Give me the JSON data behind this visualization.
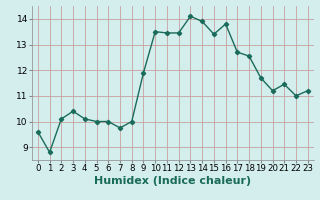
{
  "x": [
    0,
    1,
    2,
    3,
    4,
    5,
    6,
    7,
    8,
    9,
    10,
    11,
    12,
    13,
    14,
    15,
    16,
    17,
    18,
    19,
    20,
    21,
    22,
    23
  ],
  "y": [
    9.6,
    8.8,
    10.1,
    10.4,
    10.1,
    10.0,
    10.0,
    9.75,
    10.0,
    11.9,
    13.5,
    13.45,
    13.45,
    14.1,
    13.9,
    13.4,
    13.8,
    12.7,
    12.55,
    11.7,
    11.2,
    11.45,
    11.0,
    11.2
  ],
  "xlabel": "Humidex (Indice chaleur)",
  "xlim": [
    -0.5,
    23.5
  ],
  "ylim": [
    8.5,
    14.5
  ],
  "yticks": [
    9,
    10,
    11,
    12,
    13,
    14
  ],
  "xticks": [
    0,
    1,
    2,
    3,
    4,
    5,
    6,
    7,
    8,
    9,
    10,
    11,
    12,
    13,
    14,
    15,
    16,
    17,
    18,
    19,
    20,
    21,
    22,
    23
  ],
  "line_color": "#1a6b5a",
  "marker": "D",
  "marker_size": 2.2,
  "bg_color": "#d4eeee",
  "grid_color": "#b8d8d8",
  "xlabel_fontsize": 8,
  "tick_fontsize": 6.5,
  "line_width": 1.0
}
